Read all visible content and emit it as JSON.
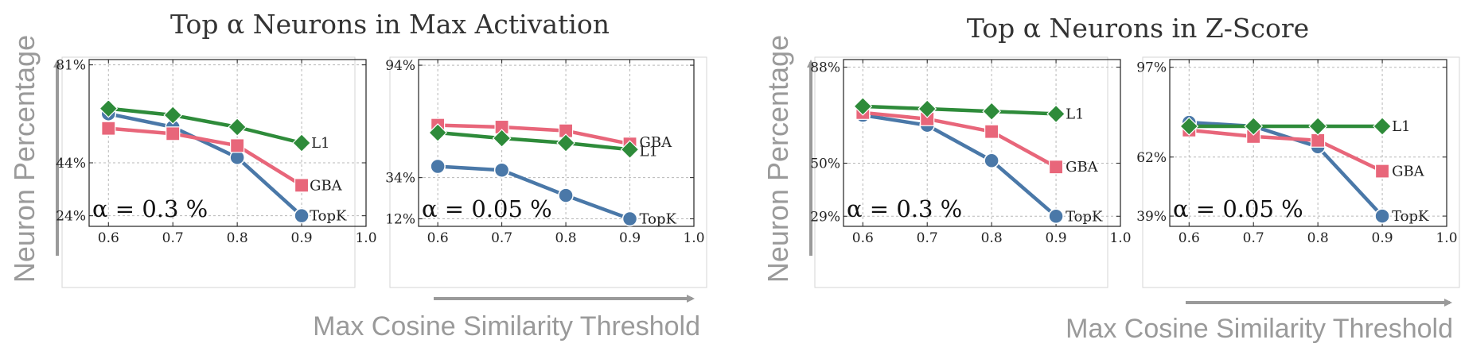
{
  "colors": {
    "TopK": "#4a78a8",
    "GBA": "#e8667a",
    "L1": "#2e8b3a",
    "arrow": "#9a9a9a",
    "grid": "#b8b8b8",
    "frame": "#222222",
    "panel_border": "#d6d6d6"
  },
  "groups": [
    {
      "title": "Top α Neurons in Max Activation",
      "ylabel": "Neuron Percentage",
      "xlabel": "Max Cosine Similarity Threshold"
    },
    {
      "title": "Top α Neurons in Z-Score",
      "ylabel": "Neuron Percentage",
      "xlabel": "Max Cosine Similarity Threshold"
    }
  ],
  "chart_data": [
    {
      "type": "line",
      "group": 0,
      "annotation": "α = 0.3 %",
      "x": [
        0.6,
        0.7,
        0.8,
        0.9
      ],
      "xlim": [
        0.57,
        1.0
      ],
      "ylim": [
        20,
        83
      ],
      "xticks": [
        0.6,
        0.7,
        0.8,
        0.9,
        1.0
      ],
      "xtick_labels": [
        "0.6",
        "0.7",
        "0.8",
        "0.9",
        "1.0"
      ],
      "yticks": [
        24,
        44,
        81
      ],
      "ytick_labels": [
        "24%",
        "44%",
        "81%"
      ],
      "series": [
        {
          "name": "TopK",
          "marker": "circle",
          "values": [
            62.5,
            57.5,
            46.0,
            24.0
          ]
        },
        {
          "name": "GBA",
          "marker": "square",
          "values": [
            57.0,
            55.0,
            50.5,
            35.5
          ]
        },
        {
          "name": "L1",
          "marker": "diamond",
          "values": [
            64.5,
            62.0,
            57.5,
            51.5
          ]
        }
      ]
    },
    {
      "type": "line",
      "group": 0,
      "annotation": "α = 0.05 %",
      "x": [
        0.6,
        0.7,
        0.8,
        0.9
      ],
      "xlim": [
        0.57,
        1.0
      ],
      "ylim": [
        8,
        97
      ],
      "xticks": [
        0.6,
        0.7,
        0.8,
        0.9,
        1.0
      ],
      "xtick_labels": [
        "0.6",
        "0.7",
        "0.8",
        "0.9",
        "1.0"
      ],
      "yticks": [
        12,
        34,
        94
      ],
      "ytick_labels": [
        "12%",
        "34%",
        "94%"
      ],
      "series": [
        {
          "name": "TopK",
          "marker": "circle",
          "values": [
            40.0,
            38.0,
            24.5,
            12.0
          ]
        },
        {
          "name": "GBA",
          "marker": "square",
          "values": [
            62.0,
            61.0,
            59.0,
            52.0
          ]
        },
        {
          "name": "L1",
          "marker": "diamond",
          "values": [
            58.0,
            55.0,
            52.5,
            49.0
          ]
        }
      ]
    },
    {
      "type": "line",
      "group": 1,
      "annotation": "α = 0.3 %",
      "x": [
        0.6,
        0.7,
        0.8,
        0.9
      ],
      "xlim": [
        0.57,
        1.0
      ],
      "ylim": [
        25,
        91
      ],
      "xticks": [
        0.6,
        0.7,
        0.8,
        0.9,
        1.0
      ],
      "xtick_labels": [
        "0.6",
        "0.7",
        "0.8",
        "0.9",
        "1.0"
      ],
      "yticks": [
        29,
        50,
        88
      ],
      "ytick_labels": [
        "29%",
        "50%",
        "88%"
      ],
      "series": [
        {
          "name": "TopK",
          "marker": "circle",
          "values": [
            69.0,
            65.0,
            51.0,
            29.0
          ]
        },
        {
          "name": "GBA",
          "marker": "square",
          "values": [
            70.0,
            67.5,
            62.5,
            48.5
          ]
        },
        {
          "name": "L1",
          "marker": "diamond",
          "values": [
            72.5,
            71.5,
            70.5,
            69.5
          ]
        }
      ]
    },
    {
      "type": "line",
      "group": 1,
      "annotation": "α = 0.05 %",
      "x": [
        0.6,
        0.7,
        0.8,
        0.9
      ],
      "xlim": [
        0.57,
        1.0
      ],
      "ylim": [
        35,
        100
      ],
      "xticks": [
        0.6,
        0.7,
        0.8,
        0.9,
        1.0
      ],
      "xtick_labels": [
        "0.6",
        "0.7",
        "0.8",
        "0.9",
        "1.0"
      ],
      "yticks": [
        39,
        62,
        97
      ],
      "ytick_labels": [
        "39%",
        "62%",
        "97%"
      ],
      "series": [
        {
          "name": "TopK",
          "marker": "circle",
          "values": [
            75.5,
            74.0,
            66.0,
            39.0
          ]
        },
        {
          "name": "GBA",
          "marker": "square",
          "values": [
            72.5,
            70.0,
            68.5,
            56.5
          ]
        },
        {
          "name": "L1",
          "marker": "diamond",
          "values": [
            74.0,
            74.0,
            74.0,
            74.0
          ]
        }
      ]
    }
  ]
}
